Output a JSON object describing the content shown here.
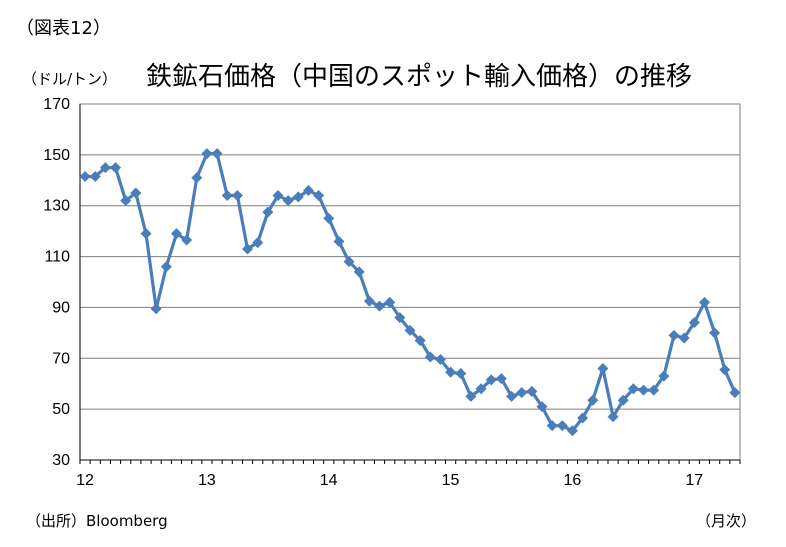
{
  "figure_label": "（図表12）",
  "title": "鉄鉱石価格（中国のスポット輸入価格）の推移",
  "unit_label": "（ドル/トン）",
  "source": "（出所）Bloomberg",
  "x_unit_label": "（月次）",
  "colors": {
    "series": "#4a7ebb",
    "grid": "#7f7f7f",
    "axis": "#000000"
  },
  "chart_data": {
    "type": "line",
    "title": "鉄鉱石価格（中国のスポット輸入価格）の推移",
    "xlabel": "（月次）",
    "ylabel": "（ドル/トン）",
    "ylim": [
      30,
      170
    ],
    "yticks": [
      30,
      50,
      70,
      90,
      110,
      130,
      150,
      170
    ],
    "xticks": [
      "12",
      "13",
      "14",
      "15",
      "16",
      "17"
    ],
    "x_start": "2012-01",
    "grid": true,
    "legend": "none",
    "series": [
      {
        "marker": "diamond",
        "values": [
          141.5,
          141.5,
          145,
          145,
          132,
          135,
          119,
          89.5,
          106,
          119,
          116.5,
          141,
          150.5,
          150.5,
          134,
          134,
          113,
          115.5,
          127.5,
          134,
          132,
          133.5,
          136,
          134,
          125,
          116,
          108,
          104,
          92.5,
          90.5,
          92,
          86,
          81,
          77,
          70.5,
          69.5,
          64.5,
          64,
          55,
          58,
          61.5,
          62,
          55,
          56.5,
          57,
          51,
          43.5,
          43.5,
          41.5,
          46.5,
          53.5,
          66,
          47,
          53.5,
          58,
          57.5,
          57.5,
          63,
          79,
          78,
          84,
          92,
          80,
          65.5,
          56.5
        ]
      }
    ]
  }
}
